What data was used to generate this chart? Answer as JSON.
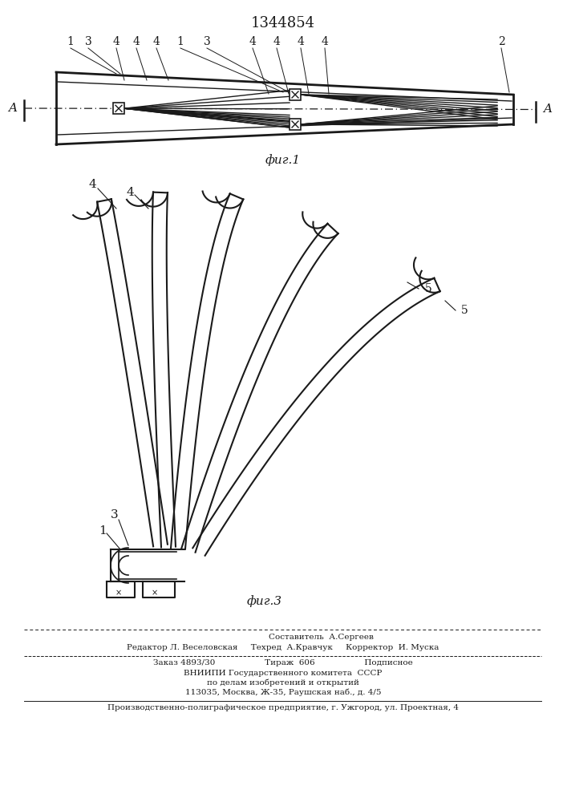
{
  "title": "1344854",
  "fig1_label": "фиг.1",
  "fig3_label": "фиг.3",
  "line_color": "#1a1a1a",
  "footer_lines": [
    "Составитель  А.Сергеев",
    "Редактор Л. Веселовская    Техред  А.Кравчук    Корректор  И. Муска",
    "Заказ 4893/30              Тираж  606             Подписное",
    "ВНИИПИ Государственного комитета  СССР",
    "по делам изобретений и открытий",
    "113035, Москва, Ж-35, Раушская наб., д. 4/5",
    "Производственно-полиграфическое предприятие, г. Ужгород, ул. Проектная, 4"
  ]
}
